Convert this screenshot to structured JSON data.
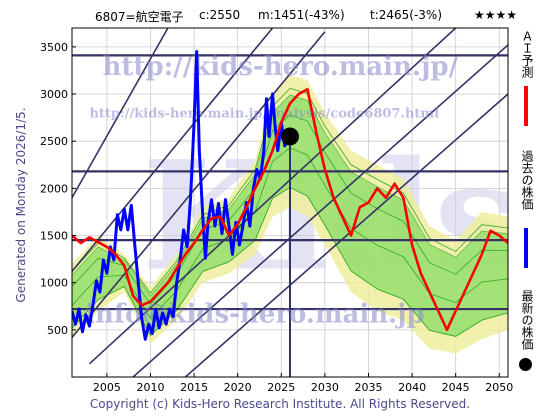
{
  "header": {
    "code_name": "6807=航空電子",
    "current": "c:2550",
    "m_stat": "m:1451(-43%)",
    "t_stat": "t:2465(-3%)",
    "rating": "★★★★"
  },
  "watermarks": {
    "url_main": "http://kids-hero.main.jp/",
    "url_analysis": "http://kids-hero.main.jp/analysis/code6807.html",
    "email": "info@kids-hero.main.jp",
    "big_mark": "Kids"
  },
  "side_note": "Generated on Monday 2026/1/5.",
  "copyright": "Copyright (c) Kids-Hero Research Institute. All Rights Reserved.",
  "legend": {
    "forecast_label": "ＡＩ予測",
    "past_label": "過去の株価",
    "latest_label": "最新の株価"
  },
  "colors": {
    "past": "#0000ff",
    "forecast": "#ff0000",
    "latest": "#000000",
    "band_fill": "#88dd66",
    "band_stroke": "#33aa22",
    "yellow_band": "#eeee99",
    "grid": "#cccccc",
    "diag": "#333366",
    "hline": "#333366"
  },
  "chart_data": {
    "type": "line",
    "xlim": [
      2001,
      2051
    ],
    "ylim": [
      0,
      3700
    ],
    "x_ticks": [
      "2005",
      "2010",
      "2015",
      "2020",
      "2025",
      "2030",
      "2035",
      "2040",
      "2045",
      "2050"
    ],
    "y_ticks": [
      "500",
      "1000",
      "1500",
      "2000",
      "2500",
      "3000",
      "3500"
    ],
    "grid": true,
    "latest_point": {
      "x": 2026.0,
      "y": 2550
    },
    "vertical_marker_x": 2026.0,
    "horizontal_levels": [
      2180,
      1451,
      720,
      3410
    ],
    "diagonal_lines": [
      {
        "x1": 2001,
        "y1": 420,
        "x2": 2030,
        "y2": 3660
      },
      {
        "x1": 2001,
        "y1": 1120,
        "x2": 2024,
        "y2": 3700
      },
      {
        "x1": 2003,
        "y1": 140,
        "x2": 2045,
        "y2": 3700
      },
      {
        "x1": 2008,
        "y1": 0,
        "x2": 2051,
        "y2": 3520
      },
      {
        "x1": 2014,
        "y1": 0,
        "x2": 2051,
        "y2": 3000
      },
      {
        "x1": 2001,
        "y1": 1900,
        "x2": 2012,
        "y2": 3700
      }
    ],
    "series": [
      {
        "name": "過去の株価",
        "color": "#0000ff",
        "points": [
          [
            2001.0,
            700
          ],
          [
            2001.4,
            560
          ],
          [
            2001.8,
            720
          ],
          [
            2002.2,
            480
          ],
          [
            2002.6,
            660
          ],
          [
            2003.0,
            540
          ],
          [
            2003.4,
            760
          ],
          [
            2003.8,
            1020
          ],
          [
            2004.2,
            900
          ],
          [
            2004.6,
            1240
          ],
          [
            2005.0,
            1100
          ],
          [
            2005.4,
            1380
          ],
          [
            2005.8,
            1240
          ],
          [
            2006.2,
            1720
          ],
          [
            2006.6,
            1560
          ],
          [
            2007.0,
            1780
          ],
          [
            2007.4,
            1560
          ],
          [
            2007.8,
            1820
          ],
          [
            2008.2,
            1400
          ],
          [
            2008.6,
            1000
          ],
          [
            2009.0,
            620
          ],
          [
            2009.4,
            400
          ],
          [
            2009.8,
            560
          ],
          [
            2010.2,
            460
          ],
          [
            2010.6,
            720
          ],
          [
            2011.0,
            520
          ],
          [
            2011.4,
            680
          ],
          [
            2011.8,
            560
          ],
          [
            2012.2,
            720
          ],
          [
            2012.6,
            640
          ],
          [
            2013.0,
            1000
          ],
          [
            2013.4,
            1240
          ],
          [
            2013.8,
            1560
          ],
          [
            2014.2,
            1380
          ],
          [
            2014.6,
            1900
          ],
          [
            2015.0,
            2700
          ],
          [
            2015.3,
            3450
          ],
          [
            2015.6,
            2400
          ],
          [
            2016.0,
            1700
          ],
          [
            2016.3,
            1260
          ],
          [
            2016.6,
            1640
          ],
          [
            2017.0,
            1880
          ],
          [
            2017.4,
            1600
          ],
          [
            2017.8,
            1840
          ],
          [
            2018.2,
            1520
          ],
          [
            2018.6,
            1880
          ],
          [
            2019.0,
            1600
          ],
          [
            2019.4,
            1300
          ],
          [
            2019.8,
            1640
          ],
          [
            2020.2,
            1400
          ],
          [
            2020.6,
            1600
          ],
          [
            2021.0,
            1850
          ],
          [
            2021.4,
            1600
          ],
          [
            2021.8,
            2000
          ],
          [
            2022.2,
            2200
          ],
          [
            2022.6,
            2100
          ],
          [
            2023.0,
            2400
          ],
          [
            2023.3,
            2950
          ],
          [
            2023.6,
            2550
          ],
          [
            2024.0,
            3000
          ],
          [
            2024.3,
            2650
          ],
          [
            2024.6,
            2400
          ],
          [
            2025.0,
            2700
          ],
          [
            2025.4,
            2450
          ],
          [
            2026.0,
            2550
          ]
        ]
      },
      {
        "name": "ＡＩ予測",
        "color": "#ff0000",
        "points": [
          [
            2001.0,
            1500
          ],
          [
            2002.0,
            1420
          ],
          [
            2003.0,
            1480
          ],
          [
            2004.0,
            1430
          ],
          [
            2005.0,
            1380
          ],
          [
            2006.0,
            1300
          ],
          [
            2007.0,
            1180
          ],
          [
            2008.0,
            860
          ],
          [
            2009.0,
            760
          ],
          [
            2010.0,
            800
          ],
          [
            2011.0,
            900
          ],
          [
            2012.0,
            1000
          ],
          [
            2013.0,
            1150
          ],
          [
            2014.0,
            1300
          ],
          [
            2015.0,
            1420
          ],
          [
            2016.0,
            1560
          ],
          [
            2017.0,
            1680
          ],
          [
            2018.0,
            1700
          ],
          [
            2019.0,
            1500
          ],
          [
            2020.0,
            1620
          ],
          [
            2021.0,
            1800
          ],
          [
            2022.0,
            2000
          ],
          [
            2023.0,
            2180
          ],
          [
            2024.0,
            2400
          ],
          [
            2025.0,
            2700
          ],
          [
            2026.0,
            2900
          ],
          [
            2027.0,
            3000
          ],
          [
            2028.0,
            3050
          ],
          [
            2029.0,
            2600
          ],
          [
            2030.0,
            2200
          ],
          [
            2031.0,
            1900
          ],
          [
            2032.0,
            1700
          ],
          [
            2033.0,
            1500
          ],
          [
            2034.0,
            1800
          ],
          [
            2035.0,
            1850
          ],
          [
            2036.0,
            2000
          ],
          [
            2037.0,
            1900
          ],
          [
            2038.0,
            2050
          ],
          [
            2039.0,
            1900
          ],
          [
            2040.0,
            1400
          ],
          [
            2041.0,
            1100
          ],
          [
            2042.0,
            900
          ],
          [
            2043.0,
            700
          ],
          [
            2044.0,
            500
          ],
          [
            2045.0,
            700
          ],
          [
            2046.0,
            900
          ],
          [
            2047.0,
            1100
          ],
          [
            2048.0,
            1300
          ],
          [
            2049.0,
            1550
          ],
          [
            2050.0,
            1500
          ],
          [
            2051.0,
            1420
          ]
        ]
      }
    ],
    "bands": [
      {
        "name": "upper-envelope",
        "points": [
          [
            2001,
            1200
          ],
          [
            2004,
            1500
          ],
          [
            2007,
            1300
          ],
          [
            2010,
            950
          ],
          [
            2013,
            1300
          ],
          [
            2016,
            1800
          ],
          [
            2019,
            1900
          ],
          [
            2022,
            2300
          ],
          [
            2024,
            3000
          ],
          [
            2026,
            3200
          ],
          [
            2028,
            3150
          ],
          [
            2030,
            2800
          ],
          [
            2033,
            2400
          ],
          [
            2036,
            2250
          ],
          [
            2039,
            2100
          ],
          [
            2042,
            1600
          ],
          [
            2045,
            1450
          ],
          [
            2048,
            1750
          ],
          [
            2051,
            1700
          ]
        ]
      },
      {
        "name": "lower-envelope",
        "points": [
          [
            2001,
            400
          ],
          [
            2004,
            700
          ],
          [
            2007,
            900
          ],
          [
            2010,
            350
          ],
          [
            2013,
            600
          ],
          [
            2016,
            1000
          ],
          [
            2019,
            1100
          ],
          [
            2022,
            1300
          ],
          [
            2024,
            1700
          ],
          [
            2026,
            1800
          ],
          [
            2028,
            1700
          ],
          [
            2030,
            1400
          ],
          [
            2033,
            900
          ],
          [
            2036,
            700
          ],
          [
            2039,
            600
          ],
          [
            2042,
            300
          ],
          [
            2045,
            250
          ],
          [
            2048,
            400
          ],
          [
            2051,
            500
          ]
        ]
      }
    ]
  }
}
